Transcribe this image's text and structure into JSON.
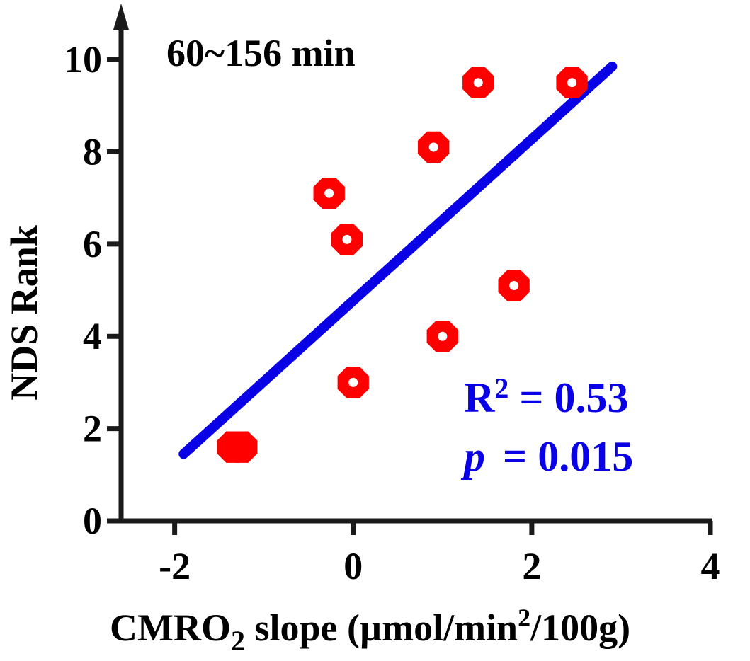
{
  "chart_data": {
    "type": "scatter",
    "title": "60~156 min",
    "xlabel_parts": {
      "base": "CMRO",
      "sub": "2",
      "mid": " slope (µmol/min",
      "sup": "2",
      "end": "/100g)"
    },
    "ylabel": "NDS Rank",
    "xlim": [
      -2.6,
      4.0
    ],
    "ylim": [
      0,
      10.6
    ],
    "xticks": [
      -2,
      0,
      2,
      4
    ],
    "yticks": [
      0,
      2,
      4,
      6,
      8,
      10
    ],
    "points": [
      {
        "x": -1.35,
        "y": 1.6,
        "filled": true
      },
      {
        "x": -1.25,
        "y": 1.6,
        "filled": true
      },
      {
        "x": -0.27,
        "y": 7.1,
        "filled": false
      },
      {
        "x": -0.07,
        "y": 6.1,
        "filled": false
      },
      {
        "x": 0.0,
        "y": 3.0,
        "filled": false
      },
      {
        "x": 0.9,
        "y": 8.1,
        "filled": false
      },
      {
        "x": 1.0,
        "y": 4.0,
        "filled": false
      },
      {
        "x": 1.4,
        "y": 9.5,
        "filled": false
      },
      {
        "x": 1.8,
        "y": 5.1,
        "filled": false
      },
      {
        "x": 2.45,
        "y": 9.5,
        "filled": false
      }
    ],
    "fit_line": {
      "x": [
        -1.9,
        2.9
      ],
      "y": [
        1.45,
        9.85
      ]
    },
    "annotations": {
      "r2_base": "R",
      "r2_sup": "2",
      "r2_rest": " = 0.53",
      "p_symbol": "p",
      "p_rest": " = 0.015"
    },
    "colors": {
      "points": "#ff0000",
      "fit": "#0a00e6",
      "axis": "#1a1a1a"
    }
  }
}
